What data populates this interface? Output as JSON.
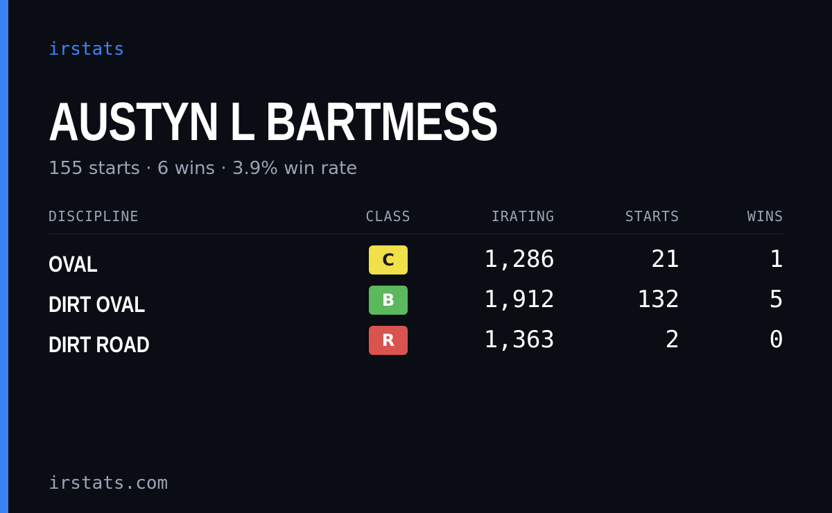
{
  "brand": "irstats",
  "driver": {
    "name": "AUSTYN L BARTMESS",
    "summary": "155 starts · 6 wins · 3.9% win rate"
  },
  "table": {
    "headers": [
      "DISCIPLINE",
      "CLASS",
      "IRATING",
      "STARTS",
      "WINS"
    ],
    "rows": [
      [
        "OVAL",
        "C",
        "1,286",
        "21",
        "1"
      ],
      [
        "DIRT OVAL",
        "B",
        "1,912",
        "132",
        "5"
      ],
      [
        "DIRT ROAD",
        "R",
        "1,363",
        "2",
        "0"
      ]
    ],
    "class_colors": [
      "#f0e14a",
      "#5cb85c",
      "#d9534f"
    ]
  },
  "footer": "irstats.com"
}
